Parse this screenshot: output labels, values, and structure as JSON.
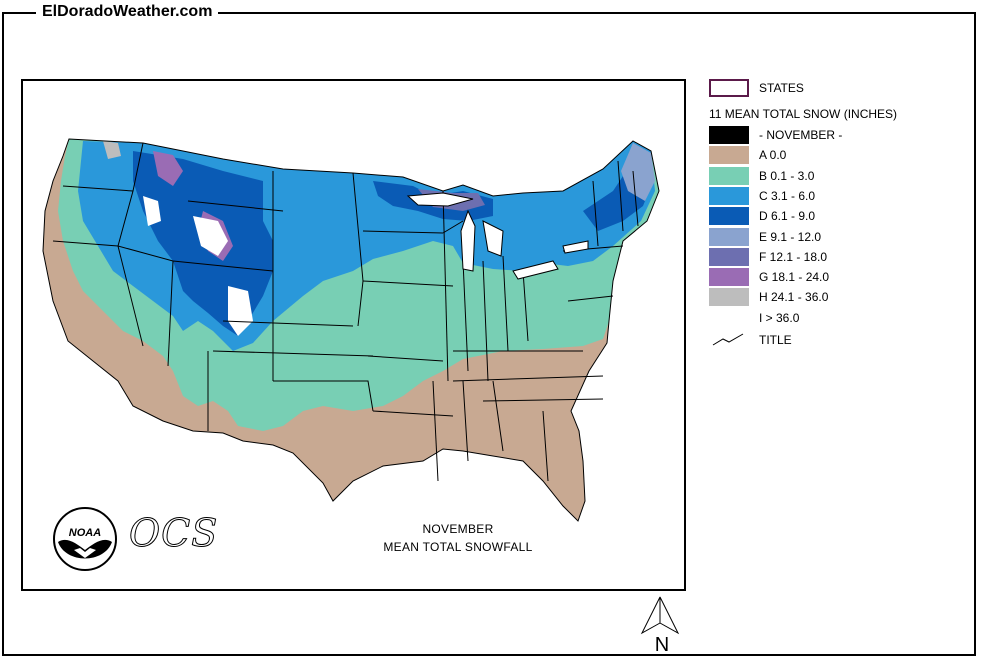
{
  "site": {
    "title": "ElDoradoWeather.com"
  },
  "map": {
    "caption_month": "NOVEMBER",
    "caption_title": "MEAN TOTAL SNOWFALL",
    "logos": {
      "noaa": "NOAA",
      "ocs": "OCS"
    },
    "north_label": "N"
  },
  "legend": {
    "states_label": "STATES",
    "title": "11 MEAN TOTAL SNOW (INCHES)",
    "items": [
      {
        "label": "- NOVEMBER -",
        "color": "#000000"
      },
      {
        "label": "A 0.0",
        "color": "#c8a992"
      },
      {
        "label": "B 0.1 - 3.0",
        "color": "#78cfb4"
      },
      {
        "label": "C 3.1 - 6.0",
        "color": "#2a98da"
      },
      {
        "label": "D 6.1 - 9.0",
        "color": "#0a5bb5"
      },
      {
        "label": "E 9.1 - 12.0",
        "color": "#8aa3cf"
      },
      {
        "label": "F 12.1 - 18.0",
        "color": "#6d6fb0"
      },
      {
        "label": "G 18.1 - 24.0",
        "color": "#9a6cb4"
      },
      {
        "label": "H 24.1 - 36.0",
        "color": "#bdbdbd"
      },
      {
        "label": "I > 36.0",
        "color": "#ffffff"
      }
    ],
    "title_line_label": "TITLE",
    "states_border_color": "#5b1a4a"
  }
}
